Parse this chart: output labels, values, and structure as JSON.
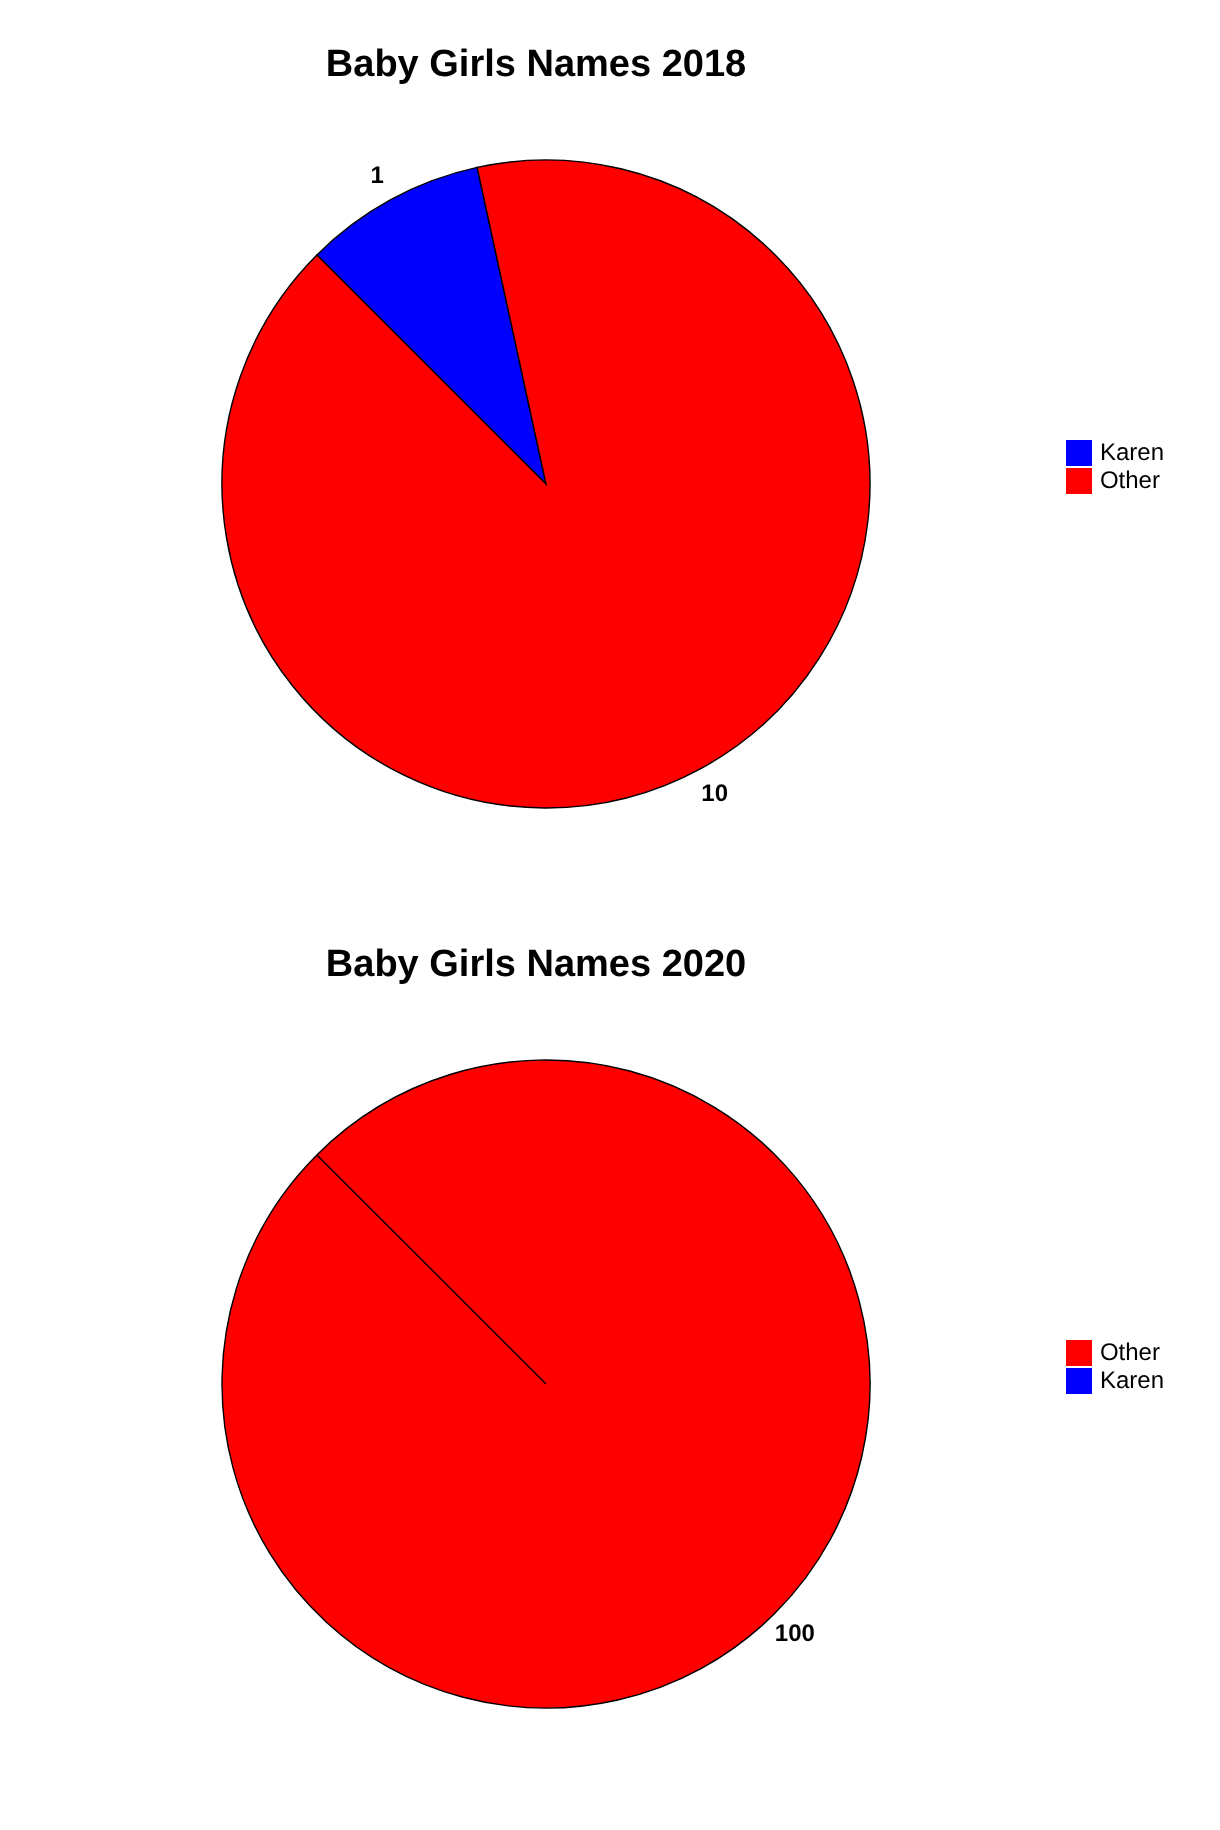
{
  "chart_data": [
    {
      "type": "pie",
      "title": "Baby Girls Names 2018",
      "categories": [
        "Karen",
        "Other"
      ],
      "values": [
        1,
        10
      ],
      "colors": [
        "#0000ff",
        "#ff0000"
      ],
      "data_labels": true,
      "legend": "right"
    },
    {
      "type": "pie",
      "title": "Baby Girls Names 2020",
      "categories": [
        "Other",
        "Karen"
      ],
      "values": [
        100,
        0
      ],
      "colors": [
        "#ff0000",
        "#0000ff"
      ],
      "value_labels": [
        "100",
        null
      ],
      "legend": "right"
    }
  ]
}
